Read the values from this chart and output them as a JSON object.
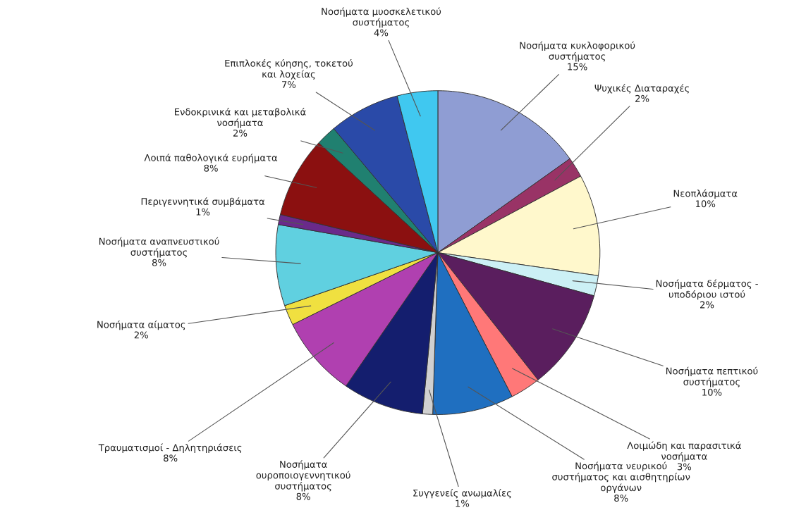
{
  "chart_data": {
    "type": "pie",
    "categories": [
      "Νοσήματα κυκλοφορικού\nσυστήματος",
      "Ψυχικές Διαταραχές",
      "Νεοπλάσματα",
      "Νοσήματα δέρματος -\nυποδόριου ιστού",
      "Νοσήματα πεπτικού\nσυστήματος",
      "Λοιμώδη και παρασιτικά\nνοσήματα",
      "Νοσήματα νευρικού\nσυστήματος και αισθητηρίων\nοργάνων",
      "Συγγενείς ανωμαλίες",
      "Νοσήματα\nουροποιογεννητικού\nσυστήματος",
      "Τραυματισμοί - Δηλητηριάσεις",
      "Νοσήματα αίματος",
      "Νοσήματα αναπνευστικού\nσυστήματος",
      "Περιγεννητικά συμβάματα",
      "Λοιπά παθολογικά ευρήματα",
      "Ενδοκρινικά και μεταβολικά\nνοσήματα",
      "Επιπλοκές κύησης, τοκετού\nκαι λοχείας",
      "Νοσήματα μυοσκελετικού\nσυστήματος"
    ],
    "values": [
      15,
      2,
      10,
      2,
      10,
      3,
      8,
      1,
      8,
      8,
      2,
      8,
      1,
      8,
      2,
      7,
      4
    ],
    "value_labels": [
      "15%",
      "2%",
      "10%",
      "2%",
      "10%",
      "3%",
      "8%",
      "1%",
      "8%",
      "8%",
      "2%",
      "8%",
      "1%",
      "8%",
      "2%",
      "7%",
      "4%"
    ],
    "colors": [
      "#8f9dd3",
      "#993366",
      "#fff8cc",
      "#ccf0f5",
      "#5a1e5e",
      "#ff7878",
      "#1f6fc0",
      "#d0d0d0",
      "#141e6e",
      "#b040b0",
      "#f0e040",
      "#60d0e0",
      "#6a2a8a",
      "#8b1010",
      "#208070",
      "#2a4aa8",
      "#40c8f0"
    ]
  }
}
